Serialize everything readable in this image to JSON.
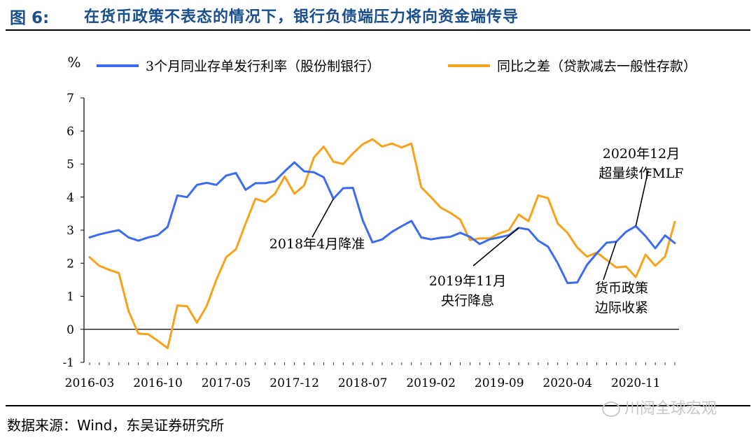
{
  "figure": {
    "number": "图 6:",
    "title": "在货币政策不表态的情况下，银行负债端压力将向资金端传导"
  },
  "source": "数据来源：Wind，东吴证券研究所",
  "watermark": "川阅全球宏观",
  "chart_data": {
    "type": "line",
    "ylabel": "%",
    "ylim": [
      -1,
      7
    ],
    "yticks": [
      -1,
      0,
      1,
      2,
      3,
      4,
      5,
      6,
      7
    ],
    "xtick_labels": [
      "2016-03",
      "2016-10",
      "2017-05",
      "2017-12",
      "2018-07",
      "2019-02",
      "2019-09",
      "2020-04",
      "2020-11"
    ],
    "xtick_index": [
      0,
      7,
      14,
      21,
      28,
      35,
      42,
      49,
      56
    ],
    "x_start": "2016-03",
    "x_end": "2021-02",
    "grid": false,
    "legend_position": "top",
    "series": [
      {
        "name": "3个月同业存单发行利率（股份制银行）",
        "color": "#3b6cf0",
        "values": [
          2.78,
          2.87,
          2.94,
          3.0,
          2.78,
          2.68,
          2.78,
          2.85,
          3.1,
          4.05,
          4.0,
          4.37,
          4.43,
          4.37,
          4.65,
          4.73,
          4.22,
          4.42,
          4.42,
          4.48,
          4.78,
          5.05,
          4.78,
          4.75,
          4.6,
          3.95,
          4.27,
          4.28,
          3.3,
          2.63,
          2.72,
          2.95,
          3.12,
          3.28,
          2.78,
          2.72,
          2.77,
          2.8,
          2.92,
          2.8,
          2.58,
          2.72,
          2.78,
          2.85,
          3.07,
          3.02,
          2.68,
          2.5,
          2.0,
          1.4,
          1.42,
          1.95,
          2.3,
          2.62,
          2.65,
          2.95,
          3.12,
          2.82,
          2.45,
          2.84,
          2.61
        ]
      },
      {
        "name": "同比之差（贷款减去一般性存款）",
        "color": "#f7a21b",
        "values": [
          2.18,
          1.92,
          1.8,
          1.7,
          0.55,
          -0.13,
          -0.15,
          -0.35,
          -0.57,
          0.72,
          0.7,
          0.2,
          0.7,
          1.5,
          2.18,
          2.42,
          3.2,
          3.95,
          3.85,
          4.1,
          4.62,
          4.1,
          4.35,
          5.2,
          5.53,
          5.07,
          5.0,
          5.32,
          5.6,
          5.75,
          5.53,
          5.62,
          5.5,
          5.62,
          4.3,
          4.0,
          3.68,
          3.52,
          3.32,
          2.7,
          2.75,
          2.75,
          2.9,
          3.0,
          3.47,
          3.27,
          4.05,
          3.97,
          3.2,
          2.92,
          2.47,
          2.2,
          2.32,
          2.1,
          1.87,
          1.9,
          1.58,
          2.26,
          1.92,
          2.2,
          3.25
        ]
      }
    ],
    "annotations": [
      {
        "lines": [
          "2018年4月降准"
        ],
        "target_index": 25,
        "target_value": 3.95
      },
      {
        "lines": [
          "2019年11月",
          "央行降息"
        ],
        "target_index": 44,
        "target_value": 3.07
      },
      {
        "lines": [
          "货币政策",
          "边际收紧"
        ],
        "target_index": 54,
        "target_value": 2.65
      },
      {
        "lines": [
          "2020年12月",
          "超量续作MLF"
        ],
        "target_index": 56,
        "target_value": 3.12
      }
    ]
  }
}
